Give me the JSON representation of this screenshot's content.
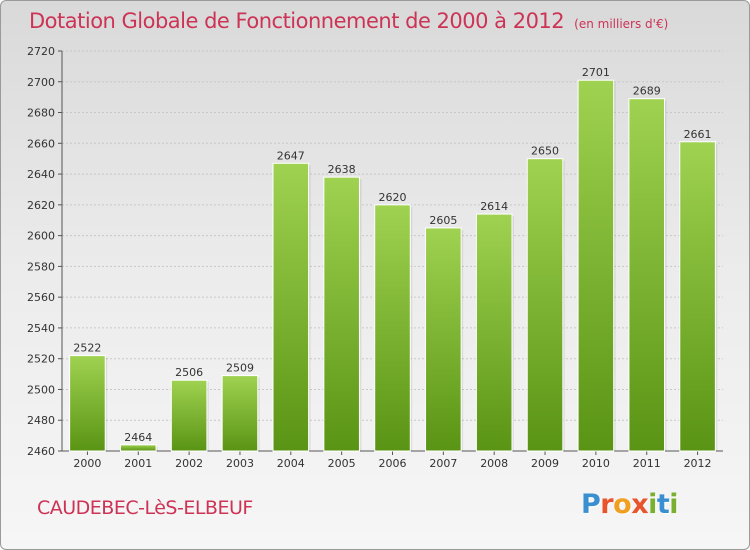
{
  "title": "Dotation Globale de Fonctionnement de 2000 à 2012",
  "subtitle": "(en milliers d'€)",
  "commune": "CAUDEBEC-LèS-ELBEUF",
  "brand": {
    "letters": [
      "P",
      "r",
      "o",
      "x",
      "i",
      "t",
      "i"
    ],
    "colors": [
      "#3a8fd0",
      "#e8542c",
      "#f0a020",
      "#e8542c",
      "#7ab030",
      "#3a8fd0",
      "#7ab030"
    ]
  },
  "colors": {
    "bar_top": "#9fd250",
    "bar_bottom": "#5a9414",
    "title": "#cc3355"
  },
  "chart_data": {
    "type": "bar",
    "categories": [
      "2000",
      "2001",
      "2002",
      "2003",
      "2004",
      "2005",
      "2006",
      "2007",
      "2008",
      "2009",
      "2010",
      "2011",
      "2012"
    ],
    "values": [
      2522,
      2464,
      2506,
      2509,
      2647,
      2638,
      2620,
      2605,
      2614,
      2650,
      2701,
      2689,
      2661
    ],
    "ylim": [
      2460,
      2720
    ],
    "yticks": [
      2460,
      2480,
      2500,
      2520,
      2540,
      2560,
      2580,
      2600,
      2620,
      2640,
      2660,
      2680,
      2700,
      2720
    ],
    "grid": true,
    "xlabel": "",
    "ylabel": ""
  }
}
